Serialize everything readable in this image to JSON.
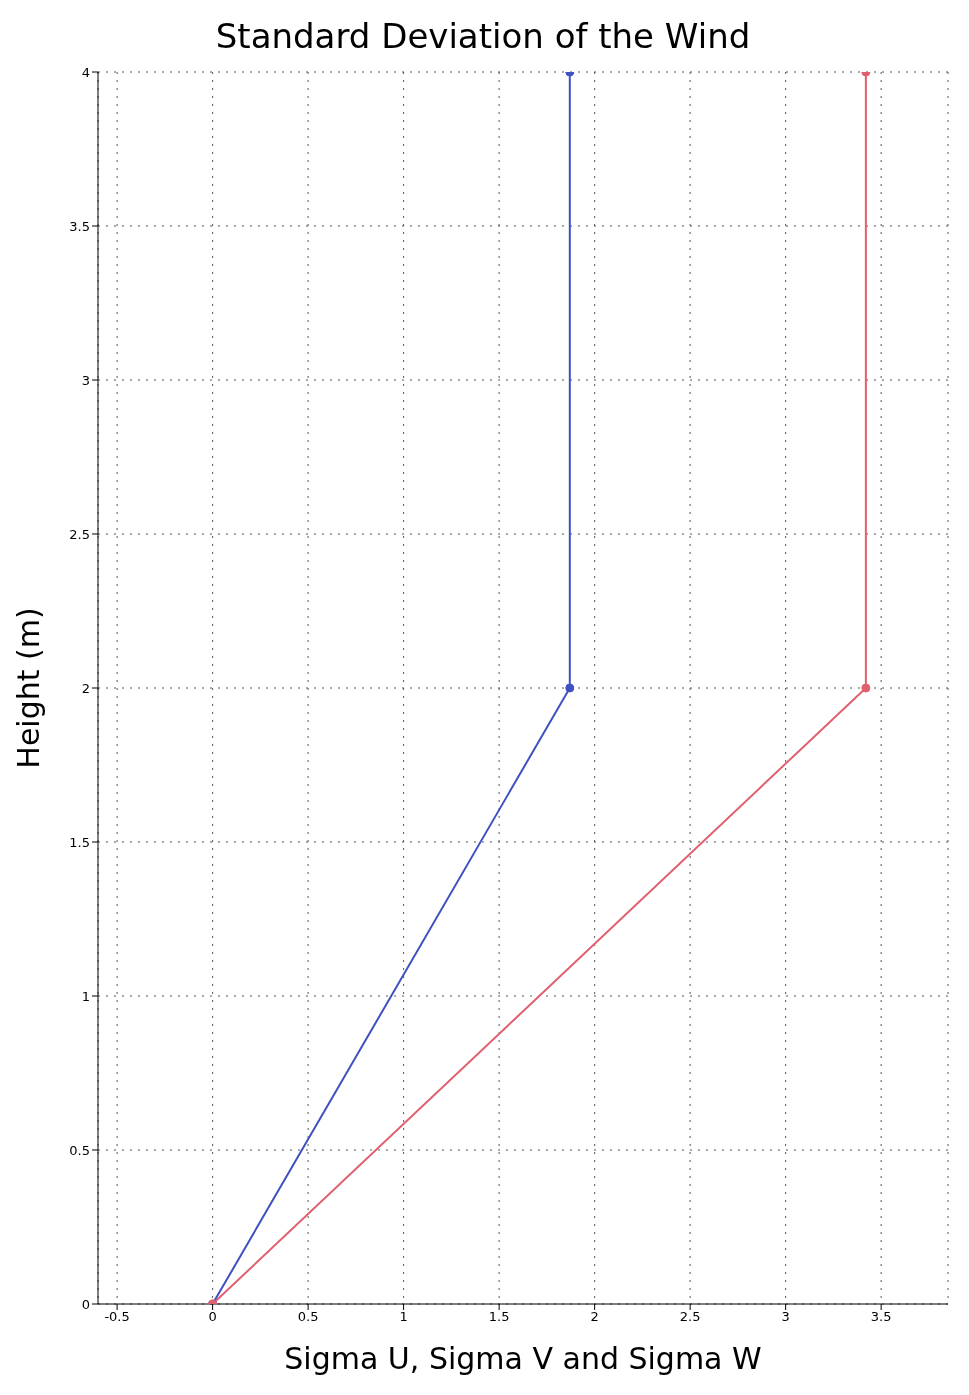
{
  "chart_data": {
    "type": "line",
    "title": "Standard Deviation of the Wind",
    "xlabel": "Sigma U, Sigma V and Sigma W",
    "ylabel": "Height (m)",
    "series": [
      {
        "color": "#4050c0",
        "x": [
          0,
          1.87,
          1.87
        ],
        "values": [
          0,
          2,
          4
        ]
      },
      {
        "color": "#e06070",
        "x": [
          0,
          3.42,
          3.42
        ],
        "values": [
          0,
          2,
          4
        ]
      }
    ],
    "xlim": [
      -0.6,
      3.85
    ],
    "xticks": [
      -0.5,
      0,
      0.5,
      1,
      1.5,
      2,
      2.5,
      3,
      3.5
    ],
    "ylim": [
      0,
      4
    ],
    "yticks": [
      0,
      0.5,
      1,
      1.5,
      2,
      2.5,
      3,
      3.5,
      4
    ],
    "grid": true,
    "marker": "circle",
    "line_style": "solid"
  }
}
